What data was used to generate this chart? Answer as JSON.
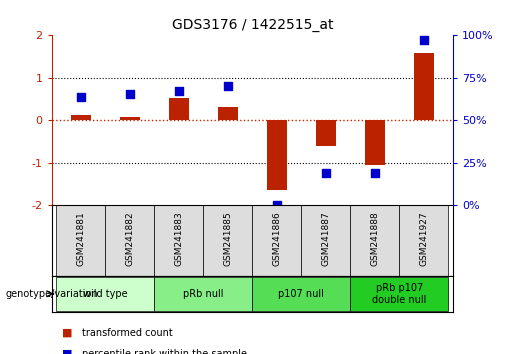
{
  "title": "GDS3176 / 1422515_at",
  "samples": [
    "GSM241881",
    "GSM241882",
    "GSM241883",
    "GSM241885",
    "GSM241886",
    "GSM241887",
    "GSM241888",
    "GSM241927"
  ],
  "red_values": [
    0.13,
    0.07,
    0.52,
    0.32,
    -1.65,
    -0.6,
    -1.05,
    1.58
  ],
  "blue_values": [
    0.55,
    0.62,
    0.68,
    0.82,
    -2.0,
    -1.25,
    -1.25,
    1.88
  ],
  "ylim": [
    -2.0,
    2.0
  ],
  "yticks_left": [
    -2,
    -1,
    0,
    1,
    2
  ],
  "bar_color": "#bb2200",
  "dot_color": "#0000cc",
  "zero_line_color": "#cc2200",
  "grid_color": "#000000",
  "groups": [
    {
      "label": "wild type",
      "span": [
        0,
        2
      ],
      "color": "#ccffcc"
    },
    {
      "label": "pRb null",
      "span": [
        2,
        4
      ],
      "color": "#88ee88"
    },
    {
      "label": "p107 null",
      "span": [
        4,
        6
      ],
      "color": "#55dd55"
    },
    {
      "label": "pRb p107\ndouble null",
      "span": [
        6,
        8
      ],
      "color": "#22cc22"
    }
  ],
  "legend_items": [
    {
      "label": "transformed count",
      "color": "#bb2200"
    },
    {
      "label": "percentile rank within the sample",
      "color": "#0000cc"
    }
  ],
  "bar_width": 0.4,
  "dot_size": 30
}
